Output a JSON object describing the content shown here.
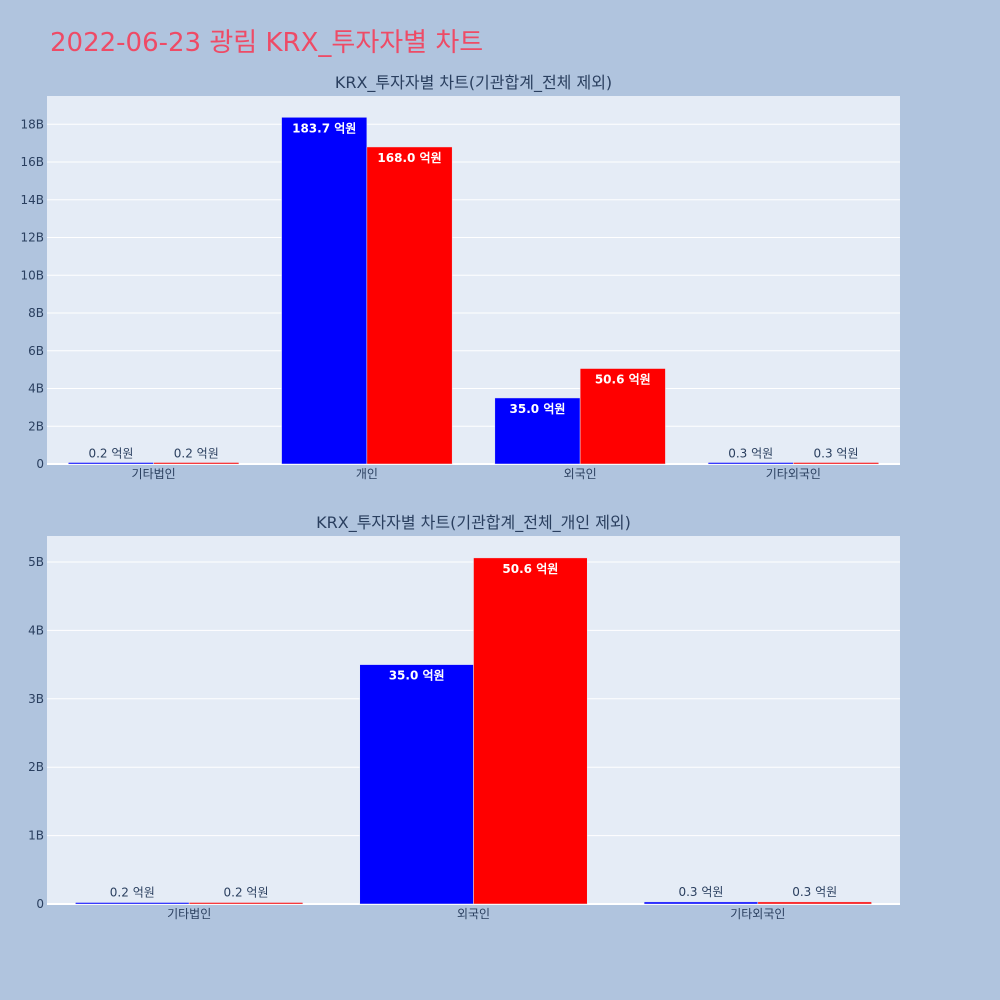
{
  "page": {
    "title": "2022-06-23 광림 KRX_투자자별 차트"
  },
  "colors": {
    "series_blue": "#0000ff",
    "series_red": "#ff0000",
    "title": "#ee4b66",
    "plot_bg": "#e5ecf6",
    "page_bg": "#b0c4de"
  },
  "chart_data": [
    {
      "type": "bar",
      "title": "KRX_투자자별 차트(기관합계_전체 제외)",
      "categories": [
        "기타법인",
        "개인",
        "외국인",
        "기타외국인"
      ],
      "series": [
        {
          "values": [
            0.02,
            18.37,
            3.5,
            0.03
          ],
          "labels": [
            "0.2 억원",
            "183.7 억원",
            "35.0 억원",
            "0.3 억원"
          ]
        },
        {
          "values": [
            0.02,
            16.8,
            5.06,
            0.03
          ],
          "labels": [
            "0.2 억원",
            "168.0 억원",
            "50.6 억원",
            "0.3 억원"
          ]
        }
      ],
      "ylim": [
        0,
        19.5
      ],
      "yticks": [
        0,
        2,
        4,
        6,
        8,
        10,
        12,
        14,
        16,
        18
      ],
      "ytick_labels": [
        "0",
        "2B",
        "4B",
        "6B",
        "8B",
        "10B",
        "12B",
        "14B",
        "16B",
        "18B"
      ],
      "grid": true
    },
    {
      "type": "bar",
      "title": "KRX_투자자별 차트(기관합계_전체_개인 제외)",
      "categories": [
        "기타법인",
        "외국인",
        "기타외국인"
      ],
      "series": [
        {
          "values": [
            0.02,
            3.5,
            0.03
          ],
          "labels": [
            "0.2 억원",
            "35.0 억원",
            "0.3 억원"
          ]
        },
        {
          "values": [
            0.02,
            5.06,
            0.03
          ],
          "labels": [
            "0.2 억원",
            "50.6 억원",
            "0.3 억원"
          ]
        }
      ],
      "ylim": [
        0,
        5.38
      ],
      "yticks": [
        0,
        1,
        2,
        3,
        4,
        5
      ],
      "ytick_labels": [
        "0",
        "1B",
        "2B",
        "3B",
        "4B",
        "5B"
      ],
      "grid": true
    }
  ]
}
